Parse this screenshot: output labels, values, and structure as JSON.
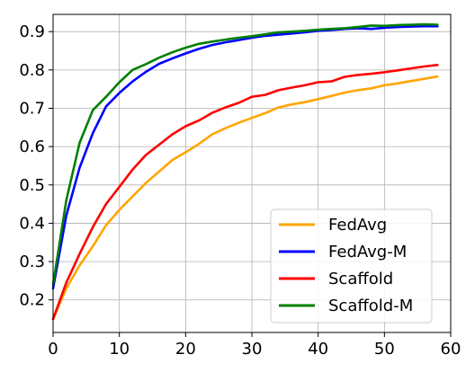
{
  "chart_data": {
    "type": "line",
    "title": "",
    "xlabel": "",
    "ylabel": "",
    "xlim": [
      0,
      60
    ],
    "ylim": [
      0.115,
      0.945
    ],
    "xticks": [
      0,
      10,
      20,
      30,
      40,
      50,
      60
    ],
    "yticks": [
      0.2,
      0.3,
      0.4,
      0.5,
      0.6,
      0.7,
      0.8,
      0.9
    ],
    "grid": true,
    "legend_position": "lower right",
    "series": [
      {
        "name": "FedAvg",
        "color": "#FFA500",
        "x": [
          0,
          2,
          4,
          6,
          8,
          10,
          12,
          14,
          16,
          18,
          20,
          22,
          24,
          26,
          28,
          30,
          32,
          34,
          36,
          38,
          40,
          42,
          44,
          46,
          48,
          50,
          52,
          54,
          56,
          58
        ],
        "y": [
          0.15,
          0.23,
          0.29,
          0.34,
          0.395,
          0.435,
          0.47,
          0.505,
          0.535,
          0.565,
          0.585,
          0.607,
          0.632,
          0.648,
          0.662,
          0.675,
          0.687,
          0.702,
          0.71,
          0.716,
          0.724,
          0.732,
          0.741,
          0.747,
          0.752,
          0.76,
          0.765,
          0.771,
          0.777,
          0.783
        ]
      },
      {
        "name": "FedAvg-M",
        "color": "#0000FF",
        "x": [
          0,
          2,
          4,
          6,
          8,
          10,
          12,
          14,
          16,
          18,
          20,
          22,
          24,
          26,
          28,
          30,
          32,
          34,
          36,
          38,
          40,
          42,
          44,
          46,
          48,
          50,
          52,
          54,
          56,
          58
        ],
        "y": [
          0.23,
          0.42,
          0.545,
          0.635,
          0.705,
          0.74,
          0.77,
          0.795,
          0.816,
          0.83,
          0.843,
          0.855,
          0.865,
          0.872,
          0.878,
          0.884,
          0.889,
          0.892,
          0.895,
          0.898,
          0.902,
          0.904,
          0.907,
          0.909,
          0.907,
          0.91,
          0.912,
          0.913,
          0.914,
          0.914
        ]
      },
      {
        "name": "Scaffold",
        "color": "#FF0000",
        "x": [
          0,
          2,
          4,
          6,
          8,
          10,
          12,
          14,
          16,
          18,
          20,
          22,
          24,
          26,
          28,
          30,
          32,
          34,
          36,
          38,
          40,
          42,
          44,
          46,
          48,
          50,
          52,
          54,
          56,
          58
        ],
        "y": [
          0.15,
          0.245,
          0.32,
          0.39,
          0.45,
          0.495,
          0.54,
          0.578,
          0.605,
          0.632,
          0.653,
          0.668,
          0.688,
          0.702,
          0.714,
          0.73,
          0.735,
          0.747,
          0.754,
          0.76,
          0.768,
          0.77,
          0.782,
          0.787,
          0.79,
          0.794,
          0.799,
          0.804,
          0.809,
          0.813
        ]
      },
      {
        "name": "Scaffold-M",
        "color": "#008000",
        "x": [
          0,
          2,
          4,
          6,
          8,
          10,
          12,
          14,
          16,
          18,
          20,
          22,
          24,
          26,
          28,
          30,
          32,
          34,
          36,
          38,
          40,
          42,
          44,
          46,
          48,
          50,
          52,
          54,
          56,
          58
        ],
        "y": [
          0.24,
          0.46,
          0.61,
          0.695,
          0.73,
          0.768,
          0.8,
          0.815,
          0.832,
          0.846,
          0.858,
          0.868,
          0.874,
          0.879,
          0.884,
          0.888,
          0.893,
          0.898,
          0.9,
          0.902,
          0.905,
          0.907,
          0.909,
          0.912,
          0.916,
          0.915,
          0.917,
          0.918,
          0.919,
          0.918
        ]
      }
    ]
  }
}
